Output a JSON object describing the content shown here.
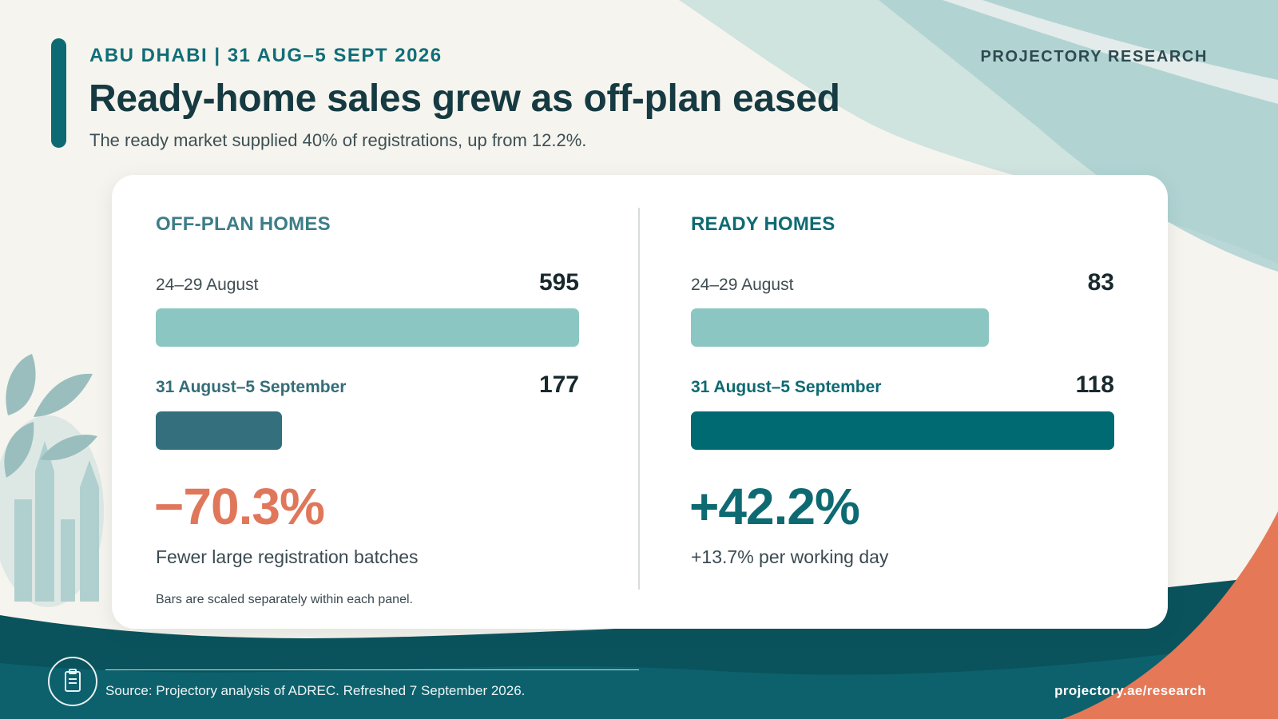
{
  "header": {
    "eyebrow": "ABU DHABI | 31 AUG–5 SEPT 2026",
    "brand": "PROJECTORY RESEARCH",
    "title": "Ready-home sales grew as off-plan eased",
    "subtitle": "The ready market supplied 40% of registrations, up from 12.2%."
  },
  "colors": {
    "offplan_prev": "#8cc6c2",
    "offplan_curr": "#336f7c",
    "offplan_change": "#e0775a",
    "ready_prev": "#8cc6c2",
    "ready_curr": "#006a73",
    "ready_change": "#0e6a72",
    "teal_dark": "#0a535c",
    "coral": "#e57857"
  },
  "chart_data": [
    {
      "type": "bar",
      "orientation": "horizontal",
      "title": "OFF-PLAN HOMES",
      "categories": [
        "24–29 August",
        "31 August–5 September"
      ],
      "values": [
        595,
        177
      ],
      "xlim": [
        0,
        595
      ],
      "change": "−70.3%",
      "note": "Fewer large registration batches"
    },
    {
      "type": "bar",
      "orientation": "horizontal",
      "title": "READY HOMES",
      "categories": [
        "24–29 August",
        "31 August–5 September"
      ],
      "values": [
        83,
        118
      ],
      "xlim": [
        0,
        118
      ],
      "change": "+42.2%",
      "note": "+13.7% per working day"
    }
  ],
  "scale_note": "Bars are scaled separately within each panel.",
  "footer": {
    "icon": "document-icon",
    "source": "Source: Projectory analysis of ADREC. Refreshed 7 September 2026.",
    "url": "projectory.ae/research"
  }
}
